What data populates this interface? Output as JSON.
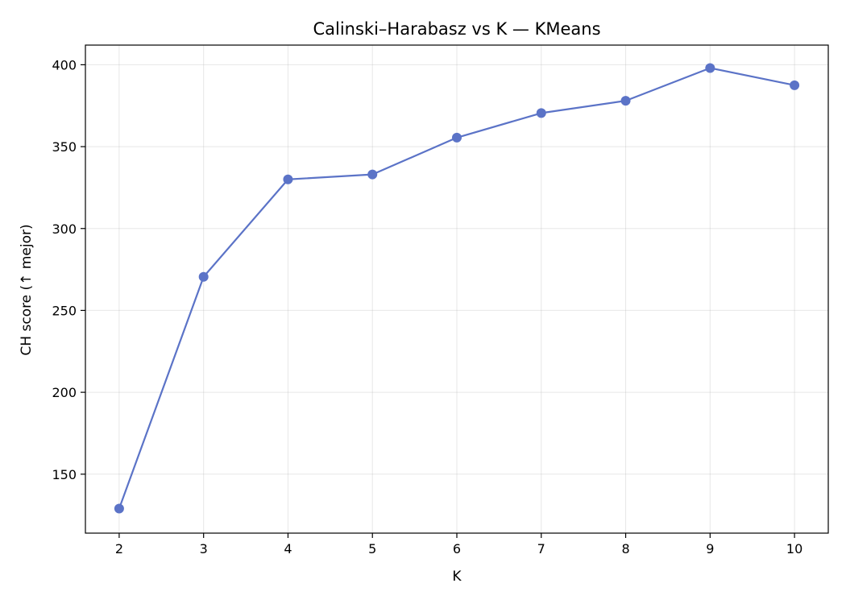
{
  "chart_data": {
    "type": "line",
    "title": "Calinski–Harabasz vs K — KMeans",
    "xlabel": "K",
    "ylabel": "CH score (↑ mejor)",
    "x": [
      2,
      3,
      4,
      5,
      6,
      7,
      8,
      9,
      10
    ],
    "series": [
      {
        "values": [
          129,
          270.5,
          330,
          333,
          355.5,
          370.5,
          378,
          398,
          387.5
        ],
        "color": "#5b73c7",
        "marker": "circle"
      }
    ],
    "xlim": [
      1.6,
      10.4
    ],
    "ylim": [
      114,
      412
    ],
    "xticks": [
      2,
      3,
      4,
      5,
      6,
      7,
      8,
      9,
      10
    ],
    "yticks": [
      150,
      200,
      250,
      300,
      350,
      400
    ],
    "grid": true,
    "legend": false
  }
}
